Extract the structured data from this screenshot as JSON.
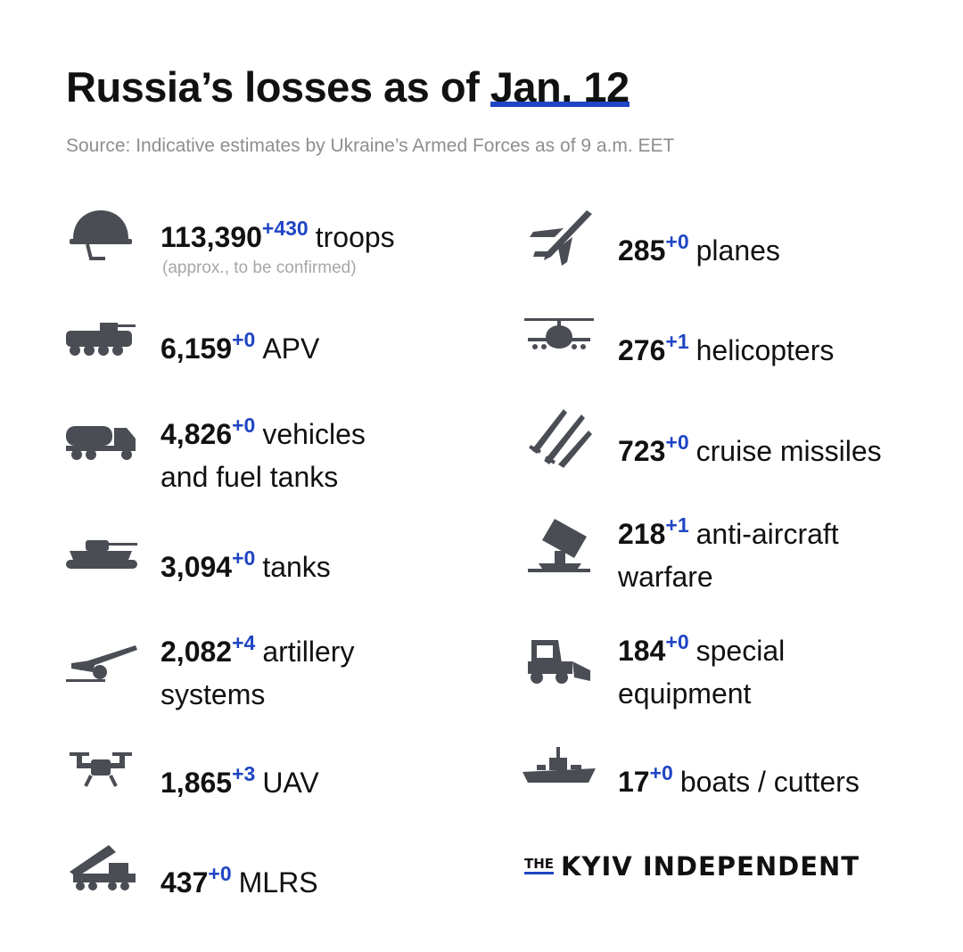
{
  "header": {
    "title_prefix": "Russia’s losses as of",
    "title_date": "Jan. 12",
    "source": "Source: Indicative estimates by Ukraine’s Armed Forces as of 9 a.m. EET"
  },
  "left_items": [
    {
      "icon": "helmet-icon",
      "value": "113,390",
      "delta": "+430",
      "label": "troops",
      "note": "(approx., to be confirmed)"
    },
    {
      "icon": "apv-icon",
      "value": "6,159",
      "delta": "+0",
      "label": "APV"
    },
    {
      "icon": "fuel-truck-icon",
      "value": "4,826",
      "delta": "+0",
      "label": "vehicles",
      "label2": "and fuel tanks"
    },
    {
      "icon": "tank-icon",
      "value": "3,094",
      "delta": "+0",
      "label": "tanks"
    },
    {
      "icon": "artillery-icon",
      "value": "2,082",
      "delta": "+4",
      "label": "artillery",
      "label2": "systems"
    },
    {
      "icon": "drone-icon",
      "value": "1,865",
      "delta": "+3",
      "label": "UAV"
    },
    {
      "icon": "mlrs-icon",
      "value": "437",
      "delta": "+0",
      "label": "MLRS"
    }
  ],
  "right_items": [
    {
      "icon": "plane-icon",
      "value": "285",
      "delta": "+0",
      "label": "planes"
    },
    {
      "icon": "helicopter-icon",
      "value": "276",
      "delta": "+1",
      "label": "helicopters"
    },
    {
      "icon": "missiles-icon",
      "value": "723",
      "delta": "+0",
      "label": "cruise missiles"
    },
    {
      "icon": "anti-aircraft-icon",
      "value": "218",
      "delta": "+1",
      "label": "anti-aircraft",
      "label2": "warfare"
    },
    {
      "icon": "bulldozer-icon",
      "value": "184",
      "delta": "+0",
      "label": "special",
      "label2": "equipment"
    },
    {
      "icon": "ship-icon",
      "value": "17",
      "delta": "+0",
      "label": "boats / cutters"
    }
  ],
  "brand": {
    "the": "THE",
    "name": "KYIV INDEPENDENT"
  },
  "colors": {
    "accent": "#1f45c4",
    "icon": "#4a4d54",
    "text": "#111111",
    "muted": "#8e8e8e"
  }
}
